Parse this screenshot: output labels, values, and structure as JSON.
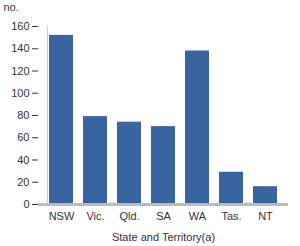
{
  "chart_data": {
    "type": "bar",
    "y_label": "no.",
    "x_label": "State and Territory(a)",
    "categories": [
      "NSW",
      "Vic.",
      "Qld.",
      "SA",
      "WA",
      "Tas.",
      "NT"
    ],
    "values": [
      152,
      79,
      74,
      70,
      138,
      29,
      16
    ],
    "color": "#3a64a0",
    "ylim": [
      0,
      160
    ],
    "yticks": [
      0,
      20,
      40,
      60,
      80,
      100,
      120,
      140,
      160
    ],
    "grid": false
  }
}
